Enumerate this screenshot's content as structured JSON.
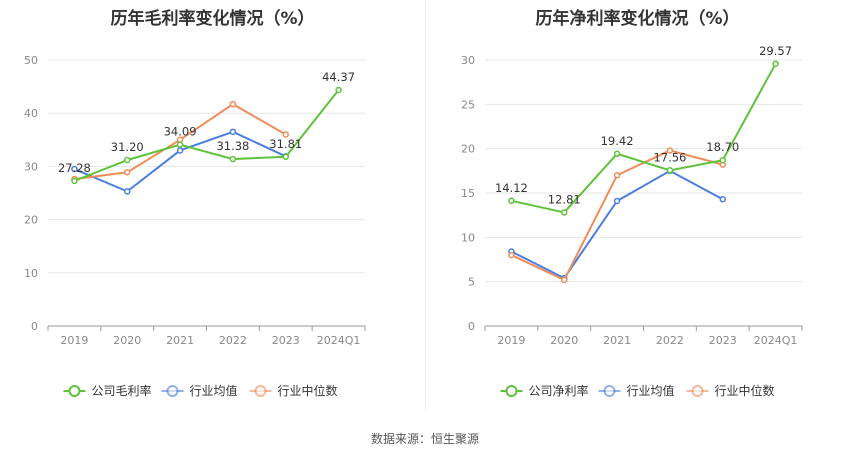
{
  "charts": [
    {
      "id": "left",
      "title": "历年毛利率变化情况（%）",
      "chart_data": {
        "type": "line",
        "categories": [
          "2019",
          "2020",
          "2021",
          "2022",
          "2023",
          "2024Q1"
        ],
        "ylim": [
          0,
          50
        ],
        "yticks": [
          0,
          10,
          20,
          30,
          40,
          50
        ],
        "grid": true,
        "legend_position": "bottom",
        "series": [
          {
            "name": "公司毛利率",
            "color": "#5ec23b",
            "values": [
              27.28,
              31.2,
              34.09,
              31.38,
              31.81,
              44.37
            ],
            "labels": [
              "27.28",
              "31.20",
              "34.09",
              "31.38",
              "31.81",
              "44.37"
            ]
          },
          {
            "name": "行业均值",
            "color": "#4a7ee0",
            "values": [
              29.5,
              25.3,
              33.0,
              36.5,
              31.9,
              null
            ]
          },
          {
            "name": "行业中位数",
            "color": "#f08c5a",
            "values": [
              27.6,
              28.9,
              35.0,
              41.7,
              36.0,
              null
            ]
          }
        ]
      }
    },
    {
      "id": "right",
      "title": "历年净利率变化情况（%）",
      "chart_data": {
        "type": "line",
        "categories": [
          "2019",
          "2020",
          "2021",
          "2022",
          "2023",
          "2024Q1"
        ],
        "ylim": [
          0,
          30
        ],
        "yticks": [
          0,
          5,
          10,
          15,
          20,
          25,
          30
        ],
        "grid": true,
        "legend_position": "bottom",
        "series": [
          {
            "name": "公司净利率",
            "color": "#5ec23b",
            "values": [
              14.12,
              12.81,
              19.42,
              17.56,
              18.7,
              29.57
            ],
            "labels": [
              "14.12",
              "12.81",
              "19.42",
              "17.56",
              "18.70",
              "29.57"
            ]
          },
          {
            "name": "行业均值",
            "color": "#4a7ee0",
            "values": [
              8.4,
              5.4,
              14.1,
              17.5,
              14.3,
              null
            ]
          },
          {
            "name": "行业中位数",
            "color": "#f08c5a",
            "values": [
              8.0,
              5.2,
              17.0,
              19.8,
              18.2,
              null
            ]
          }
        ]
      }
    }
  ],
  "source": "数据来源：恒生聚源"
}
